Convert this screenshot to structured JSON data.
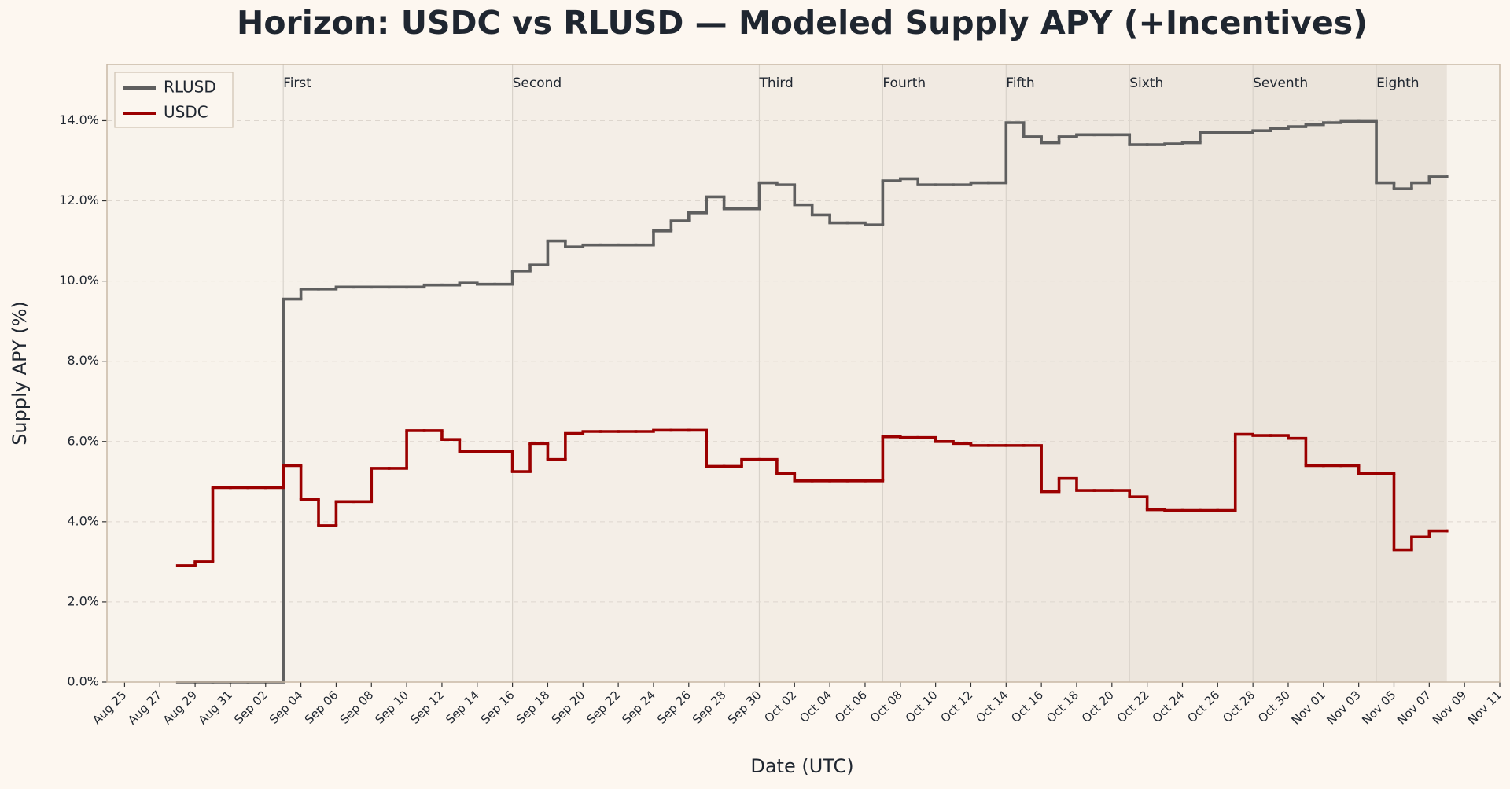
{
  "chart_data": {
    "type": "line",
    "title": "Horizon: USDC vs RLUSD — Modeled Supply APY (+Incentives)",
    "xlabel": "Date (UTC)",
    "ylabel": "Supply APY (%)",
    "step": true,
    "grid": true,
    "legend": "upper left",
    "xlim": [
      "Aug 24",
      "Nov 11"
    ],
    "ylim": [
      0,
      15.4
    ],
    "xticks": [
      "Aug 25",
      "Aug 27",
      "Aug 29",
      "Aug 31",
      "Sep 02",
      "Sep 04",
      "Sep 06",
      "Sep 08",
      "Sep 10",
      "Sep 12",
      "Sep 14",
      "Sep 16",
      "Sep 18",
      "Sep 20",
      "Sep 22",
      "Sep 24",
      "Sep 26",
      "Sep 28",
      "Sep 30",
      "Oct 02",
      "Oct 04",
      "Oct 06",
      "Oct 08",
      "Oct 10",
      "Oct 12",
      "Oct 14",
      "Oct 16",
      "Oct 18",
      "Oct 20",
      "Oct 22",
      "Oct 24",
      "Oct 26",
      "Oct 28",
      "Oct 30",
      "Nov 01",
      "Nov 03",
      "Nov 05",
      "Nov 07",
      "Nov 09",
      "Nov 11"
    ],
    "yticks": [
      {
        "value": 0,
        "label": "0.0%"
      },
      {
        "value": 2,
        "label": "2.0%"
      },
      {
        "value": 4,
        "label": "4.0%"
      },
      {
        "value": 6,
        "label": "6.0%"
      },
      {
        "value": 8,
        "label": "8.0%"
      },
      {
        "value": 10,
        "label": "10.0%"
      },
      {
        "value": 12,
        "label": "12.0%"
      },
      {
        "value": 14,
        "label": "14.0%"
      }
    ],
    "periods": [
      {
        "label": "First",
        "start": "Sep 03"
      },
      {
        "label": "Second",
        "start": "Sep 16"
      },
      {
        "label": "Third",
        "start": "Sep 30"
      },
      {
        "label": "Fourth",
        "start": "Oct 07"
      },
      {
        "label": "Fifth",
        "start": "Oct 14"
      },
      {
        "label": "Sixth",
        "start": "Oct 21"
      },
      {
        "label": "Seventh",
        "start": "Oct 28"
      },
      {
        "label": "Eighth",
        "start": "Nov 04"
      }
    ],
    "x": [
      "Aug 28",
      "Aug 29",
      "Aug 30",
      "Aug 31",
      "Sep 01",
      "Sep 02",
      "Sep 03",
      "Sep 04",
      "Sep 05",
      "Sep 06",
      "Sep 07",
      "Sep 08",
      "Sep 09",
      "Sep 10",
      "Sep 11",
      "Sep 12",
      "Sep 13",
      "Sep 14",
      "Sep 15",
      "Sep 16",
      "Sep 17",
      "Sep 18",
      "Sep 19",
      "Sep 20",
      "Sep 21",
      "Sep 22",
      "Sep 23",
      "Sep 24",
      "Sep 25",
      "Sep 26",
      "Sep 27",
      "Sep 28",
      "Sep 29",
      "Sep 30",
      "Oct 01",
      "Oct 02",
      "Oct 03",
      "Oct 04",
      "Oct 05",
      "Oct 06",
      "Oct 07",
      "Oct 08",
      "Oct 09",
      "Oct 10",
      "Oct 11",
      "Oct 12",
      "Oct 13",
      "Oct 14",
      "Oct 15",
      "Oct 16",
      "Oct 17",
      "Oct 18",
      "Oct 19",
      "Oct 20",
      "Oct 21",
      "Oct 22",
      "Oct 23",
      "Oct 24",
      "Oct 25",
      "Oct 26",
      "Oct 27",
      "Oct 28",
      "Oct 29",
      "Oct 30",
      "Oct 31",
      "Nov 01",
      "Nov 02",
      "Nov 03",
      "Nov 04",
      "Nov 05",
      "Nov 06",
      "Nov 07",
      "Nov 08"
    ],
    "series": [
      {
        "name": "RLUSD",
        "color": "#5f5f5f",
        "values": [
          0,
          0,
          0,
          0,
          0,
          0,
          9.55,
          9.8,
          9.8,
          9.85,
          9.85,
          9.85,
          9.85,
          9.85,
          9.9,
          9.9,
          9.95,
          9.92,
          9.92,
          10.25,
          10.4,
          11.0,
          10.85,
          10.9,
          10.9,
          10.9,
          10.9,
          11.25,
          11.5,
          11.7,
          12.1,
          11.8,
          11.8,
          12.45,
          12.4,
          11.9,
          11.65,
          11.45,
          11.45,
          11.4,
          12.5,
          12.55,
          12.4,
          12.4,
          12.4,
          12.45,
          12.45,
          13.95,
          13.6,
          13.45,
          13.6,
          13.65,
          13.65,
          13.65,
          13.4,
          13.4,
          13.42,
          13.45,
          13.7,
          13.7,
          13.7,
          13.75,
          13.8,
          13.85,
          13.9,
          13.95,
          13.98,
          13.98,
          12.45,
          12.3,
          12.45,
          12.6,
          12.6
        ]
      },
      {
        "name": "USDC",
        "color": "#9b0000",
        "values": [
          2.9,
          3.0,
          4.85,
          4.85,
          4.85,
          4.85,
          5.4,
          4.55,
          3.9,
          4.5,
          4.5,
          5.33,
          5.33,
          6.27,
          6.27,
          6.05,
          5.75,
          5.75,
          5.75,
          5.25,
          5.95,
          5.55,
          6.2,
          6.25,
          6.25,
          6.25,
          6.25,
          6.28,
          6.28,
          6.28,
          5.38,
          5.38,
          5.55,
          5.55,
          5.2,
          5.02,
          5.02,
          5.02,
          5.02,
          5.02,
          6.12,
          6.1,
          6.1,
          6.0,
          5.95,
          5.9,
          5.9,
          5.9,
          5.9,
          4.75,
          5.08,
          4.78,
          4.78,
          4.78,
          4.62,
          4.3,
          4.28,
          4.28,
          4.28,
          4.28,
          6.18,
          6.15,
          6.15,
          6.08,
          5.4,
          5.4,
          5.4,
          5.2,
          5.2,
          3.3,
          3.62,
          3.77,
          3.77
        ]
      }
    ]
  }
}
